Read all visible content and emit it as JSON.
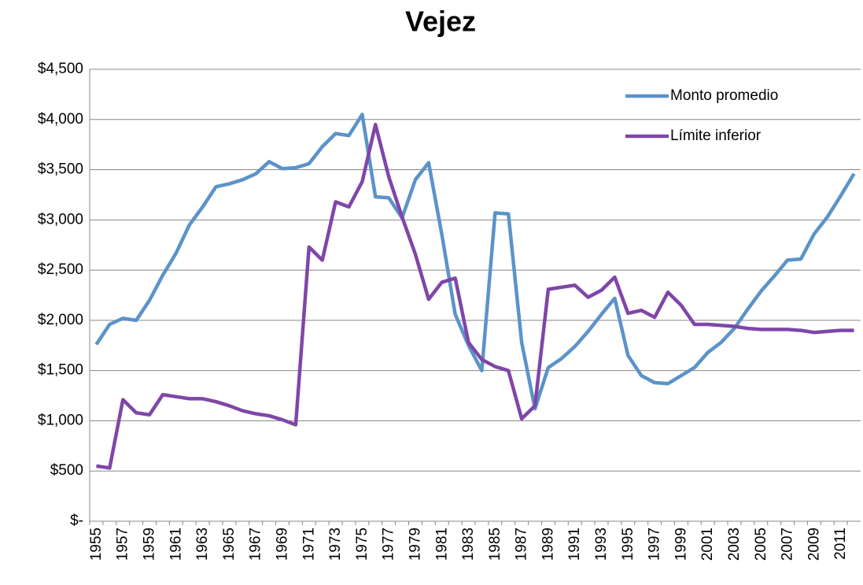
{
  "chart_data": {
    "type": "line",
    "title": "Vejez",
    "categories": [
      "1955",
      null,
      "1957",
      null,
      "1959",
      null,
      "1961",
      null,
      "1963",
      null,
      "1965",
      null,
      "1967",
      null,
      "1969",
      null,
      "1971",
      null,
      "1973",
      null,
      "1975",
      null,
      "1977",
      null,
      "1979",
      null,
      "1981",
      null,
      "1983",
      null,
      "1985",
      null,
      "1987",
      null,
      "1989",
      null,
      "1991",
      null,
      "1993",
      null,
      "1995",
      null,
      "1997",
      null,
      "1999",
      null,
      "2001",
      null,
      "2003",
      null,
      "2005",
      null,
      "2007",
      null,
      "2009",
      null,
      "2011",
      null
    ],
    "series": [
      {
        "name": "Monto promedio",
        "color": "#5b93c9",
        "values": [
          1760,
          1960,
          2020,
          2000,
          2200,
          2450,
          2670,
          2950,
          3130,
          3330,
          3360,
          3400,
          3460,
          3580,
          3510,
          3520,
          3560,
          3730,
          3860,
          3840,
          4050,
          3230,
          3220,
          3020,
          3400,
          3570,
          2850,
          2060,
          1750,
          1500,
          3070,
          3060,
          1780,
          1120,
          1530,
          1620,
          1740,
          1890,
          2060,
          2220,
          1650,
          1450,
          1380,
          1370,
          1450,
          1530,
          1680,
          1780,
          1920,
          2110,
          2290,
          2440,
          2600,
          2610,
          2860,
          3030,
          3240,
          3460
        ]
      },
      {
        "name": "Límite inferior",
        "color": "#7f46a8",
        "values": [
          550,
          530,
          1210,
          1080,
          1060,
          1260,
          1240,
          1220,
          1220,
          1190,
          1150,
          1100,
          1070,
          1050,
          1010,
          960,
          2730,
          2600,
          3180,
          3130,
          3380,
          3950,
          3430,
          3030,
          2660,
          2210,
          2380,
          2420,
          1780,
          1610,
          1540,
          1500,
          1020,
          1150,
          2310,
          2330,
          2350,
          2230,
          2300,
          2430,
          2070,
          2100,
          2030,
          2280,
          2150,
          1960,
          1960,
          1950,
          1940,
          1920,
          1910,
          1910,
          1910,
          1900,
          1880,
          1890,
          1900,
          1900
        ]
      }
    ],
    "ylim": [
      0,
      4500
    ],
    "yticks": [
      {
        "value": 0,
        "label": "$-"
      },
      {
        "value": 500,
        "label": "$500"
      },
      {
        "value": 1000,
        "label": "$1,000"
      },
      {
        "value": 1500,
        "label": "$1,500"
      },
      {
        "value": 2000,
        "label": "$2,000"
      },
      {
        "value": 2500,
        "label": "$2,500"
      },
      {
        "value": 3000,
        "label": "$3,000"
      },
      {
        "value": 3500,
        "label": "$3,500"
      },
      {
        "value": 4000,
        "label": "$4,000"
      },
      {
        "value": 4500,
        "label": "$4,500"
      }
    ],
    "grid": true,
    "legend": "upper right"
  }
}
